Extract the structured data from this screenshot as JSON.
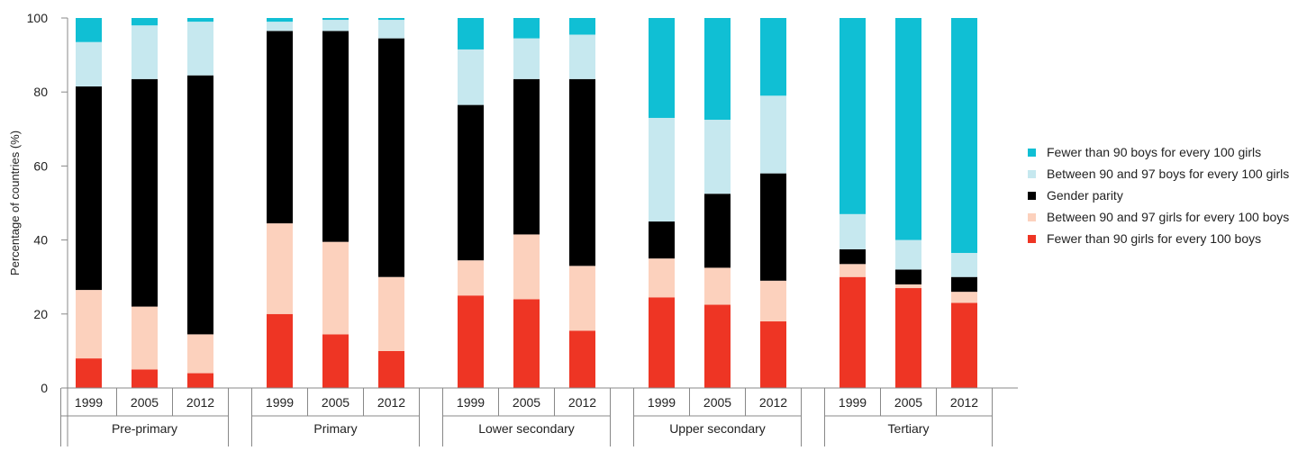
{
  "chart_data": {
    "type": "bar",
    "stacked": true,
    "title": "",
    "xlabel": "",
    "ylabel": "Percentage of countries (%)",
    "ylim": [
      0,
      100
    ],
    "yticks": [
      "0",
      "20",
      "40",
      "60",
      "80",
      "100"
    ],
    "grid": false,
    "legend_position": "right",
    "groups": [
      {
        "label": "Pre-primary",
        "years": [
          "1999",
          "2005",
          "2012"
        ]
      },
      {
        "label": "Primary",
        "years": [
          "1999",
          "2005",
          "2012"
        ]
      },
      {
        "label": "Lower secondary",
        "years": [
          "1999",
          "2005",
          "2012"
        ]
      },
      {
        "label": "Upper secondary",
        "years": [
          "1999",
          "2005",
          "2012"
        ]
      },
      {
        "label": "Tertiary",
        "years": [
          "1999",
          "2005",
          "2012"
        ]
      }
    ],
    "series": [
      {
        "name": "Fewer than 90 girls for every 100 boys",
        "color": "#ee3524",
        "values": [
          8,
          5,
          4,
          20,
          14.5,
          10,
          25,
          24,
          15.5,
          24.5,
          22.5,
          18,
          30,
          27,
          23
        ]
      },
      {
        "name": "Between 90 and 97 girls for every 100 boys",
        "color": "#fcd1bd",
        "values": [
          18.5,
          17,
          10.5,
          24.5,
          25,
          20,
          9.5,
          17.5,
          17.5,
          10.5,
          10,
          11,
          3.5,
          1,
          3
        ]
      },
      {
        "name": "Gender parity",
        "color": "#000000",
        "values": [
          55,
          61.5,
          70,
          52,
          57,
          64.5,
          42,
          42,
          50.5,
          10,
          20,
          29,
          4,
          4,
          4
        ]
      },
      {
        "name": "Between 90 and 97 boys for every 100 girls",
        "color": "#c6e8ef",
        "values": [
          12,
          14.5,
          14.5,
          2.5,
          3,
          5,
          15,
          11,
          12,
          28,
          20,
          21,
          9.5,
          8,
          6.5
        ]
      },
      {
        "name": "Fewer than 90 boys for every 100 girls",
        "color": "#10bfd4",
        "values": [
          6.5,
          2,
          1,
          1,
          0.5,
          0.5,
          8.5,
          5.5,
          4.5,
          27,
          27.5,
          21,
          53,
          60,
          63.5
        ]
      }
    ]
  }
}
